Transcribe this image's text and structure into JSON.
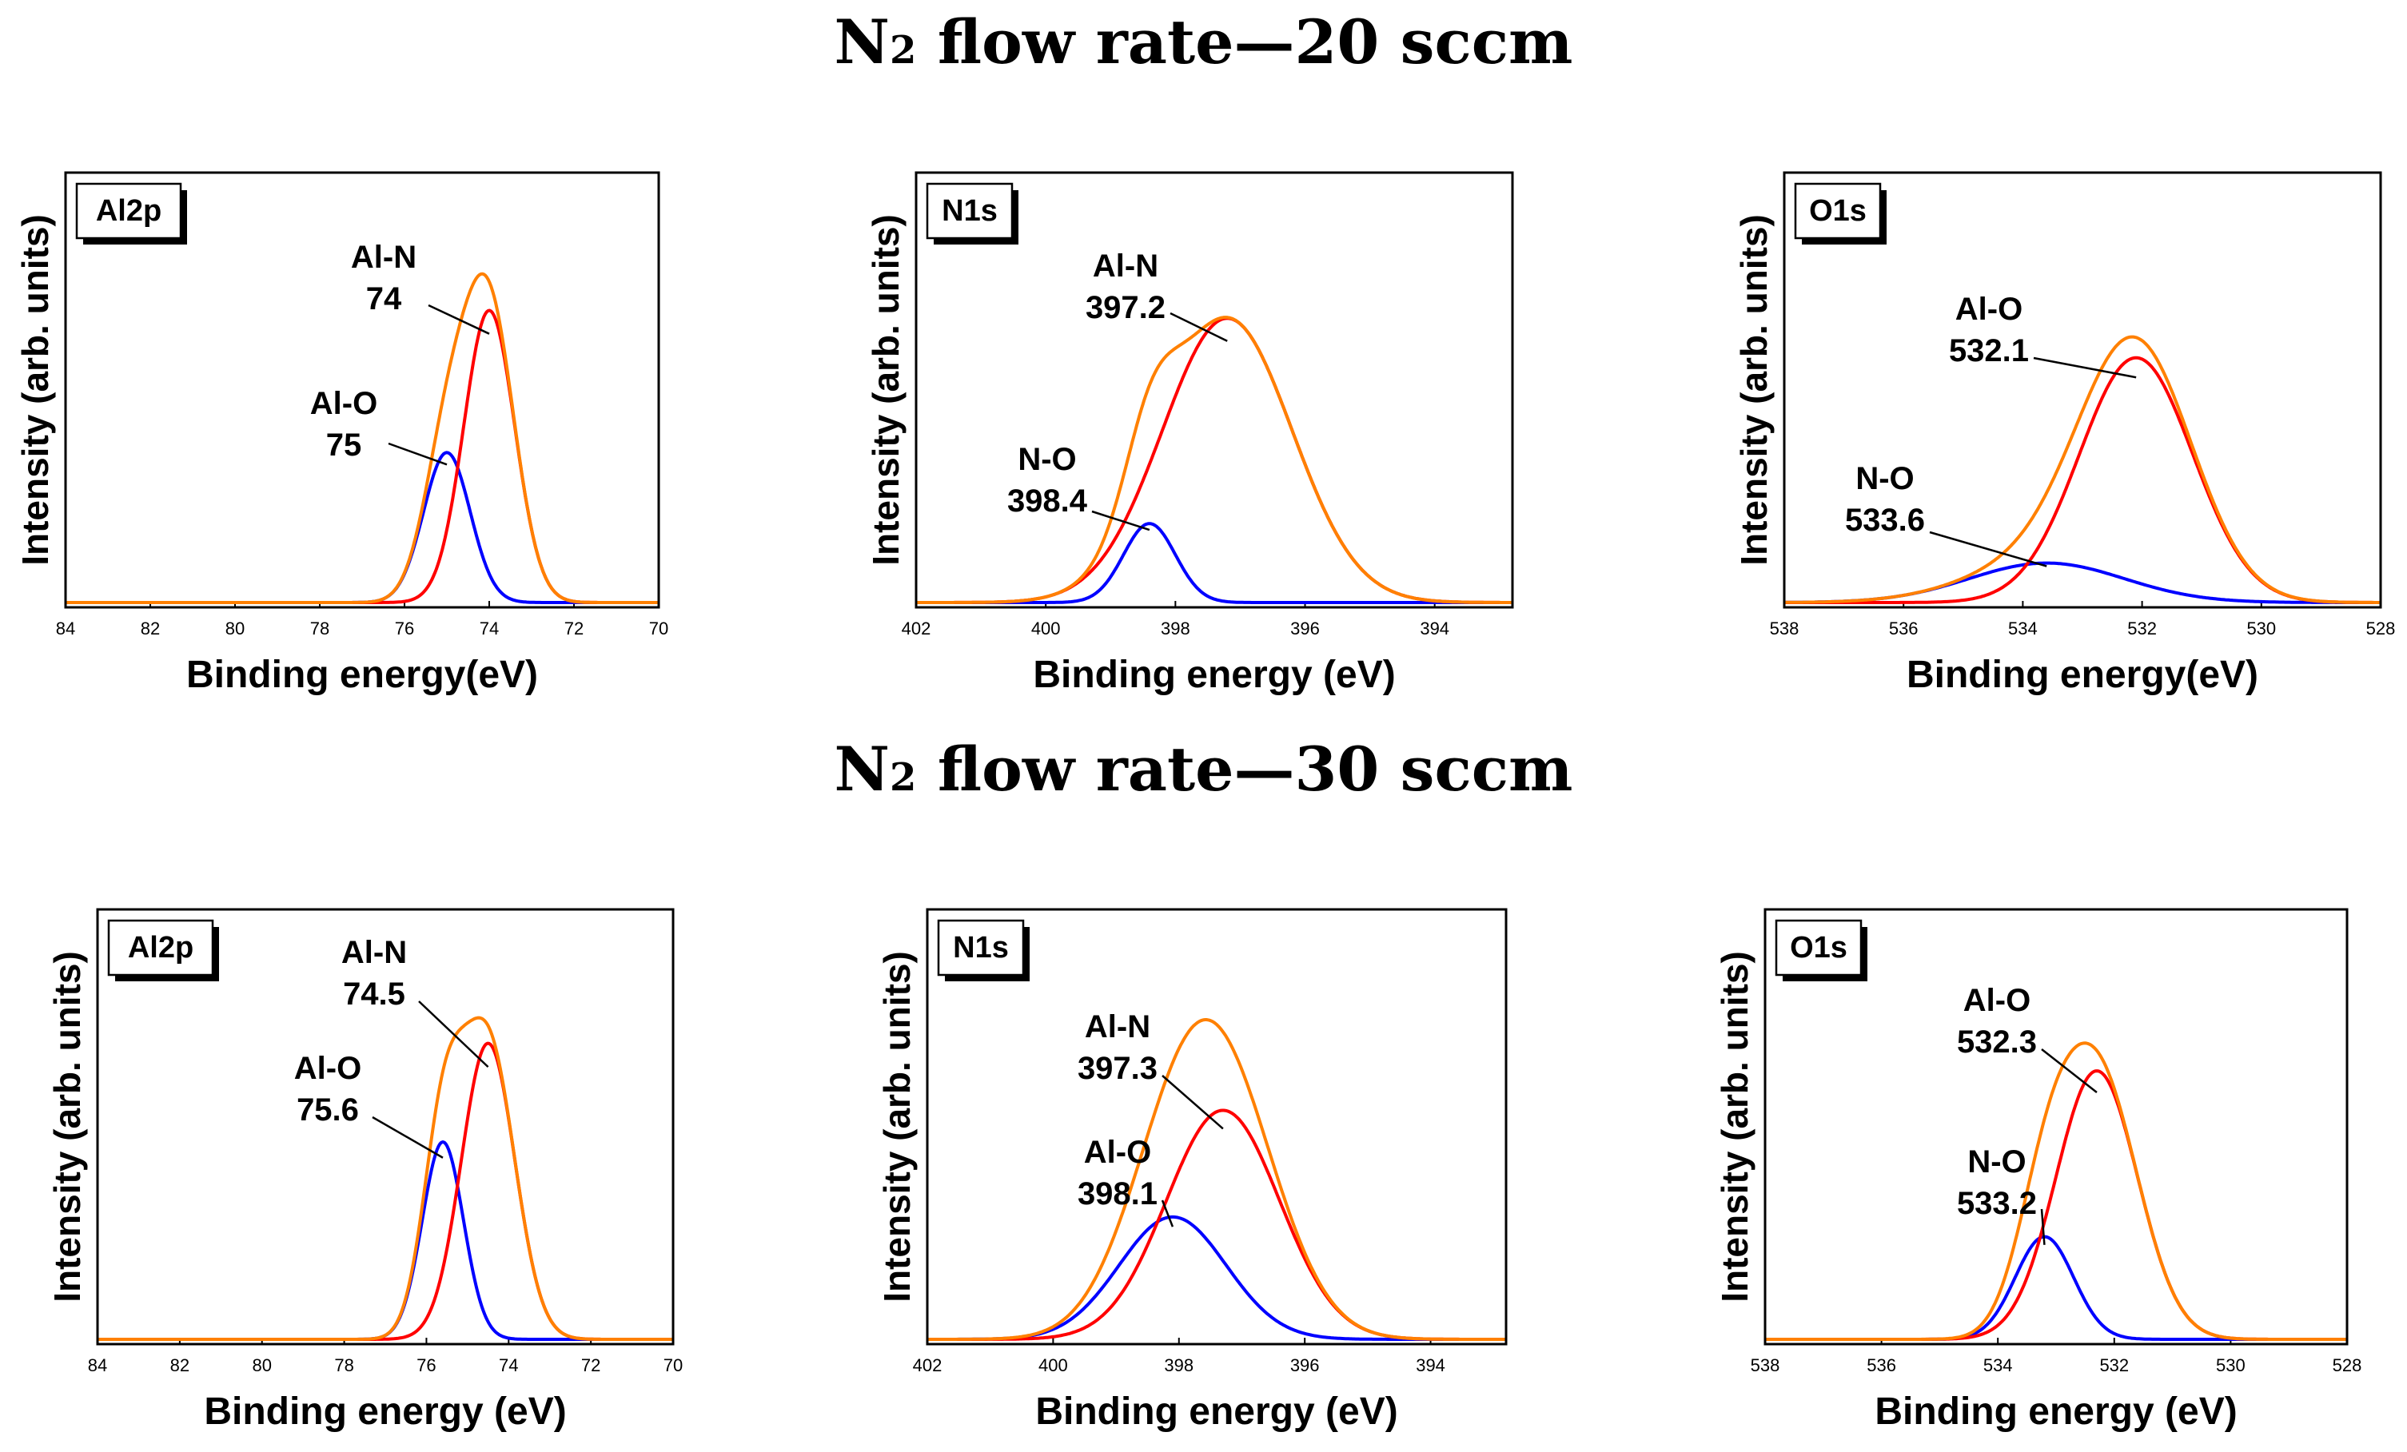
{
  "rows": [
    {
      "title_pre": "N",
      "title_sub": "2",
      "title_post": " flow rate—20 sccm"
    },
    {
      "title_pre": "N",
      "title_sub": "2",
      "title_post": " flow rate—30 sccm"
    }
  ],
  "colors": {
    "envelope": "#ff8000",
    "al_n": "#ff0000",
    "other": "#0000ff",
    "frame": "#000000"
  },
  "chart_data": [
    {
      "type": "line",
      "panel": "Al2p",
      "row": 0,
      "xlabel": "Binding energy(eV)",
      "ylabel": "Intensity (arb. units)",
      "xlim": [
        84,
        70
      ],
      "xticks": [
        84,
        82,
        80,
        78,
        76,
        74,
        72,
        70
      ],
      "ylim": [
        0,
        100
      ],
      "series": [
        {
          "name": "Al-O",
          "color": "other",
          "center": 75.0,
          "height": 38,
          "width": 0.55
        },
        {
          "name": "Al-N",
          "color": "al_n",
          "center": 74.0,
          "height": 74,
          "width": 0.6
        },
        {
          "name": "Envelope",
          "color": "envelope",
          "sum": true
        }
      ],
      "annotations": [
        {
          "label": "Al-N",
          "value": "74",
          "peak": 74.0
        },
        {
          "label": "Al-O",
          "value": "75",
          "peak": 75.0
        }
      ]
    },
    {
      "type": "line",
      "panel": "N1s",
      "row": 0,
      "xlabel": "Binding energy (eV)",
      "ylabel": "Intensity (arb. units)",
      "xlim": [
        402,
        392.8
      ],
      "xticks": [
        402,
        400,
        398,
        396,
        394
      ],
      "ylim": [
        0,
        100
      ],
      "series": [
        {
          "name": "N-O",
          "color": "other",
          "center": 398.4,
          "height": 20,
          "width": 0.4
        },
        {
          "name": "Al-N",
          "color": "al_n",
          "center": 397.2,
          "height": 72,
          "width": 1.0
        },
        {
          "name": "Envelope",
          "color": "envelope",
          "sum": true
        }
      ],
      "annotations": [
        {
          "label": "Al-N",
          "value": "397.2",
          "peak": 397.2
        },
        {
          "label": "N-O",
          "value": "398.4",
          "peak": 398.4
        }
      ]
    },
    {
      "type": "line",
      "panel": "O1s",
      "row": 0,
      "xlabel": "Binding energy(eV)",
      "ylabel": "Intensity (arb. units)",
      "xlim": [
        538,
        528
      ],
      "xticks": [
        538,
        536,
        534,
        532,
        530,
        528
      ],
      "ylim": [
        0,
        100
      ],
      "series": [
        {
          "name": "N-O",
          "color": "other",
          "center": 533.6,
          "height": 10,
          "width": 1.3
        },
        {
          "name": "Al-O",
          "color": "al_n",
          "center": 532.1,
          "height": 62,
          "width": 0.95
        },
        {
          "name": "Envelope",
          "color": "envelope",
          "sum": true
        }
      ],
      "annotations": [
        {
          "label": "Al-O",
          "value": "532.1",
          "peak": 532.1
        },
        {
          "label": "N-O",
          "value": "533.6",
          "peak": 533.6
        }
      ]
    },
    {
      "type": "line",
      "panel": "Al2p",
      "row": 1,
      "xlabel": "Binding energy (eV)",
      "ylabel": "Intensity (arb. units)",
      "xlim": [
        84,
        70
      ],
      "xticks": [
        84,
        82,
        80,
        78,
        76,
        74,
        72,
        70
      ],
      "ylim": [
        0,
        100
      ],
      "series": [
        {
          "name": "Al-O",
          "color": "other",
          "center": 75.6,
          "height": 50,
          "width": 0.5
        },
        {
          "name": "Al-N",
          "color": "al_n",
          "center": 74.5,
          "height": 75,
          "width": 0.65
        },
        {
          "name": "Envelope",
          "color": "envelope",
          "sum": true
        }
      ],
      "annotations": [
        {
          "label": "Al-N",
          "value": "74.5",
          "peak": 74.5
        },
        {
          "label": "Al-O",
          "value": "75.6",
          "peak": 75.6
        }
      ]
    },
    {
      "type": "line",
      "panel": "N1s",
      "row": 1,
      "xlabel": "Binding energy (eV)",
      "ylabel": "Intensity (arb. units)",
      "xlim": [
        402,
        392.8
      ],
      "xticks": [
        402,
        400,
        398,
        396,
        394
      ],
      "ylim": [
        0,
        100
      ],
      "series": [
        {
          "name": "Al-O",
          "color": "other",
          "center": 398.1,
          "height": 31,
          "width": 0.85
        },
        {
          "name": "Al-N",
          "color": "al_n",
          "center": 397.3,
          "height": 58,
          "width": 0.9
        },
        {
          "name": "Envelope",
          "color": "envelope",
          "sum": true
        }
      ],
      "annotations": [
        {
          "label": "Al-N",
          "value": "397.3",
          "peak": 397.3
        },
        {
          "label": "Al-O",
          "value": "398.1",
          "peak": 398.1
        }
      ]
    },
    {
      "type": "line",
      "panel": "O1s",
      "row": 1,
      "xlabel": "Binding energy (eV)",
      "ylabel": "Intensity (arb. units)",
      "xlim": [
        538,
        528
      ],
      "xticks": [
        538,
        536,
        534,
        532,
        530,
        528
      ],
      "ylim": [
        0,
        100
      ],
      "series": [
        {
          "name": "N-O",
          "color": "other",
          "center": 533.2,
          "height": 26,
          "width": 0.5
        },
        {
          "name": "Al-O",
          "color": "al_n",
          "center": 532.3,
          "height": 68,
          "width": 0.7
        },
        {
          "name": "Envelope",
          "color": "envelope",
          "sum": true
        }
      ],
      "annotations": [
        {
          "label": "Al-O",
          "value": "532.3",
          "peak": 532.3
        },
        {
          "label": "N-O",
          "value": "533.2",
          "peak": 533.2
        }
      ]
    }
  ]
}
